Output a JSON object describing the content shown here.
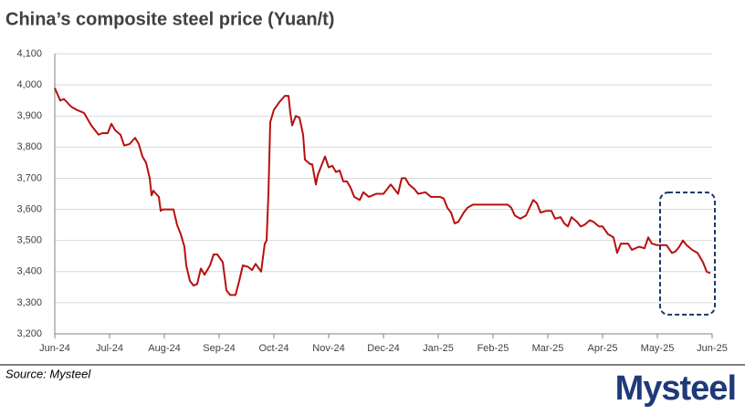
{
  "chart_data": {
    "type": "line",
    "title": "China’s composite steel price (Yuan/t)",
    "source": "Source: Mysteel",
    "logo": "Mysteel",
    "x": [
      0,
      0.1,
      0.167,
      0.3,
      0.4,
      0.533,
      0.667,
      0.8,
      0.867,
      0.967,
      1.033,
      1.1,
      1.2,
      1.267,
      1.367,
      1.467,
      1.533,
      1.6,
      1.667,
      1.733,
      1.767,
      1.8,
      1.9,
      1.933,
      1.967,
      2.167,
      2.233,
      2.3,
      2.367,
      2.4,
      2.467,
      2.533,
      2.6,
      2.667,
      2.733,
      2.833,
      2.9,
      2.967,
      3.067,
      3.133,
      3.2,
      3.3,
      3.367,
      3.433,
      3.533,
      3.6,
      3.667,
      3.767,
      3.833,
      3.867,
      3.9,
      3.933,
      4,
      4.1,
      4.2,
      4.267,
      4.3,
      4.333,
      4.4,
      4.467,
      4.533,
      4.567,
      4.667,
      4.7,
      4.767,
      4.8,
      4.867,
      4.933,
      5,
      5.067,
      5.133,
      5.2,
      5.267,
      5.333,
      5.4,
      5.467,
      5.567,
      5.633,
      5.733,
      5.867,
      6,
      6.067,
      6.133,
      6.2,
      6.267,
      6.333,
      6.4,
      6.467,
      6.567,
      6.633,
      6.767,
      6.867,
      7.033,
      7.1,
      7.167,
      7.233,
      7.3,
      7.367,
      7.467,
      7.533,
      7.633,
      7.833,
      8.267,
      8.333,
      8.4,
      8.5,
      8.6,
      8.733,
      8.8,
      8.867,
      8.967,
      9.067,
      9.133,
      9.233,
      9.3,
      9.367,
      9.433,
      9.533,
      9.6,
      9.667,
      9.767,
      9.833,
      9.933,
      10,
      10.1,
      10.2,
      10.267,
      10.333,
      10.467,
      10.533,
      10.667,
      10.767,
      10.833,
      10.9,
      11,
      11.167,
      11.267,
      11.333,
      11.4,
      11.467,
      11.533,
      11.633,
      11.733,
      11.833,
      11.9,
      11.967
    ],
    "series": [
      {
        "name": "Composite steel price",
        "color": "#b80f0f",
        "values": [
          3990,
          3950,
          3955,
          3930,
          3920,
          3910,
          3870,
          3840,
          3845,
          3845,
          3875,
          3855,
          3840,
          3805,
          3810,
          3830,
          3810,
          3770,
          3750,
          3700,
          3645,
          3660,
          3640,
          3595,
          3600,
          3600,
          3550,
          3520,
          3480,
          3420,
          3370,
          3355,
          3360,
          3410,
          3390,
          3420,
          3455,
          3455,
          3430,
          3340,
          3325,
          3325,
          3370,
          3420,
          3415,
          3405,
          3425,
          3400,
          3490,
          3500,
          3650,
          3880,
          3920,
          3945,
          3965,
          3965,
          3910,
          3870,
          3900,
          3895,
          3840,
          3760,
          3745,
          3745,
          3680,
          3710,
          3740,
          3770,
          3735,
          3740,
          3720,
          3725,
          3690,
          3690,
          3670,
          3640,
          3630,
          3655,
          3640,
          3650,
          3650,
          3665,
          3680,
          3665,
          3650,
          3700,
          3700,
          3680,
          3665,
          3650,
          3655,
          3640,
          3640,
          3635,
          3605,
          3590,
          3555,
          3560,
          3590,
          3605,
          3615,
          3615,
          3615,
          3605,
          3580,
          3570,
          3580,
          3630,
          3620,
          3590,
          3595,
          3595,
          3570,
          3575,
          3555,
          3545,
          3575,
          3560,
          3545,
          3550,
          3565,
          3560,
          3545,
          3545,
          3520,
          3510,
          3460,
          3490,
          3490,
          3470,
          3480,
          3475,
          3510,
          3490,
          3485,
          3485,
          3460,
          3465,
          3480,
          3500,
          3485,
          3470,
          3460,
          3430,
          3400,
          3395
        ]
      }
    ],
    "xlim": [
      0,
      12
    ],
    "xticks": [
      {
        "value": 0,
        "label": "Jun-24"
      },
      {
        "value": 1,
        "label": "Jul-24"
      },
      {
        "value": 2,
        "label": "Aug-24"
      },
      {
        "value": 3,
        "label": "Sep-24"
      },
      {
        "value": 4,
        "label": "Oct-24"
      },
      {
        "value": 5,
        "label": "Nov-24"
      },
      {
        "value": 6,
        "label": "Dec-24"
      },
      {
        "value": 7,
        "label": "Jan-25"
      },
      {
        "value": 8,
        "label": "Feb-25"
      },
      {
        "value": 9,
        "label": "Mar-25"
      },
      {
        "value": 10,
        "label": "Apr-25"
      },
      {
        "value": 11,
        "label": "May-25"
      },
      {
        "value": 12,
        "label": "Jun-25"
      }
    ],
    "ylim": [
      3200,
      4100
    ],
    "yticks": [
      {
        "value": 3200,
        "label": "3,200"
      },
      {
        "value": 3300,
        "label": "3,300"
      },
      {
        "value": 3400,
        "label": "3,400"
      },
      {
        "value": 3500,
        "label": "3,500"
      },
      {
        "value": 3600,
        "label": "3,600"
      },
      {
        "value": 3700,
        "label": "3,700"
      },
      {
        "value": 3800,
        "label": "3,800"
      },
      {
        "value": 3900,
        "label": "3,900"
      },
      {
        "value": 4000,
        "label": "4,000"
      },
      {
        "value": 4100,
        "label": "4,100"
      }
    ],
    "grid": true
  }
}
